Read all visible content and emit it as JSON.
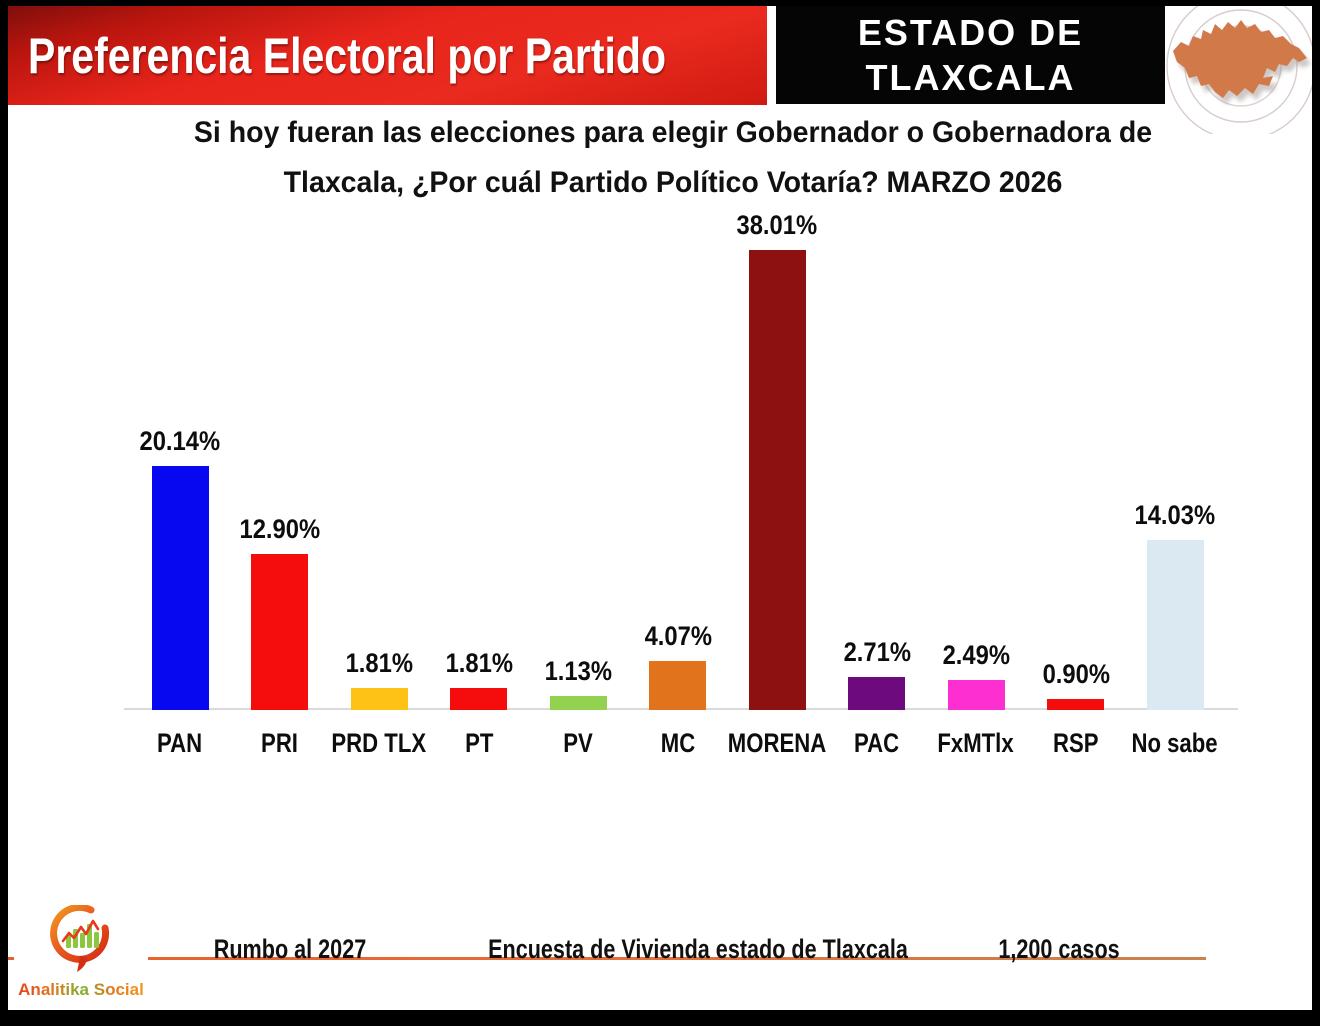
{
  "header": {
    "title": "Preferencia Electoral por Partido",
    "state_line1": "ESTADO DE",
    "state_line2": "TLAXCALA"
  },
  "question": {
    "line1": "Si hoy fueran las elecciones para elegir Gobernador o Gobernadora de",
    "line2": "Tlaxcala, ¿Por cuál Partido Político Votaría? MARZO 2026"
  },
  "chart_data": {
    "type": "bar",
    "title": "Preferencia Electoral por Partido",
    "subtitle": "Si hoy fueran las elecciones para elegir Gobernador o Gobernadora de Tlaxcala, ¿Por cuál Partido Político Votaría? MARZO 2026",
    "categories": [
      "PAN",
      "PRI",
      "PRD TLX",
      "PT",
      "PV",
      "MC",
      "MORENA",
      "PAC",
      "FxMTlx",
      "RSP",
      "No sabe"
    ],
    "values": [
      20.14,
      12.9,
      1.81,
      1.81,
      1.13,
      4.07,
      38.01,
      2.71,
      2.49,
      0.9,
      14.03
    ],
    "data_labels": [
      "20.14%",
      "12.90%",
      "1.81%",
      "1.81%",
      "1.13%",
      "4.07%",
      "38.01%",
      "2.71%",
      "2.49%",
      "0.90%",
      "14.03%"
    ],
    "bar_colors": [
      "#0707f0",
      "#f50d0d",
      "#fdc215",
      "#f50d0d",
      "#93d150",
      "#e2731d",
      "#8e1111",
      "#6d0b7e",
      "#fd2fd0",
      "#f50d0d",
      "#dbeaf2"
    ],
    "xlabel": "",
    "ylabel": "",
    "ylim": [
      0,
      40
    ],
    "grid": false,
    "legend": false,
    "axis_line_color": "#dadada"
  },
  "footer": {
    "note_left": "Rumbo al 2027",
    "note_center": "Encuesta de Vivienda estado de Tlaxcala",
    "note_right": "1,200 casos",
    "logo_text": "Analitika Social"
  },
  "colors": {
    "banner_red": "#e8251c",
    "banner_black": "#050505",
    "map_orange": "#d2794a",
    "footer_line": "#e4703a"
  }
}
